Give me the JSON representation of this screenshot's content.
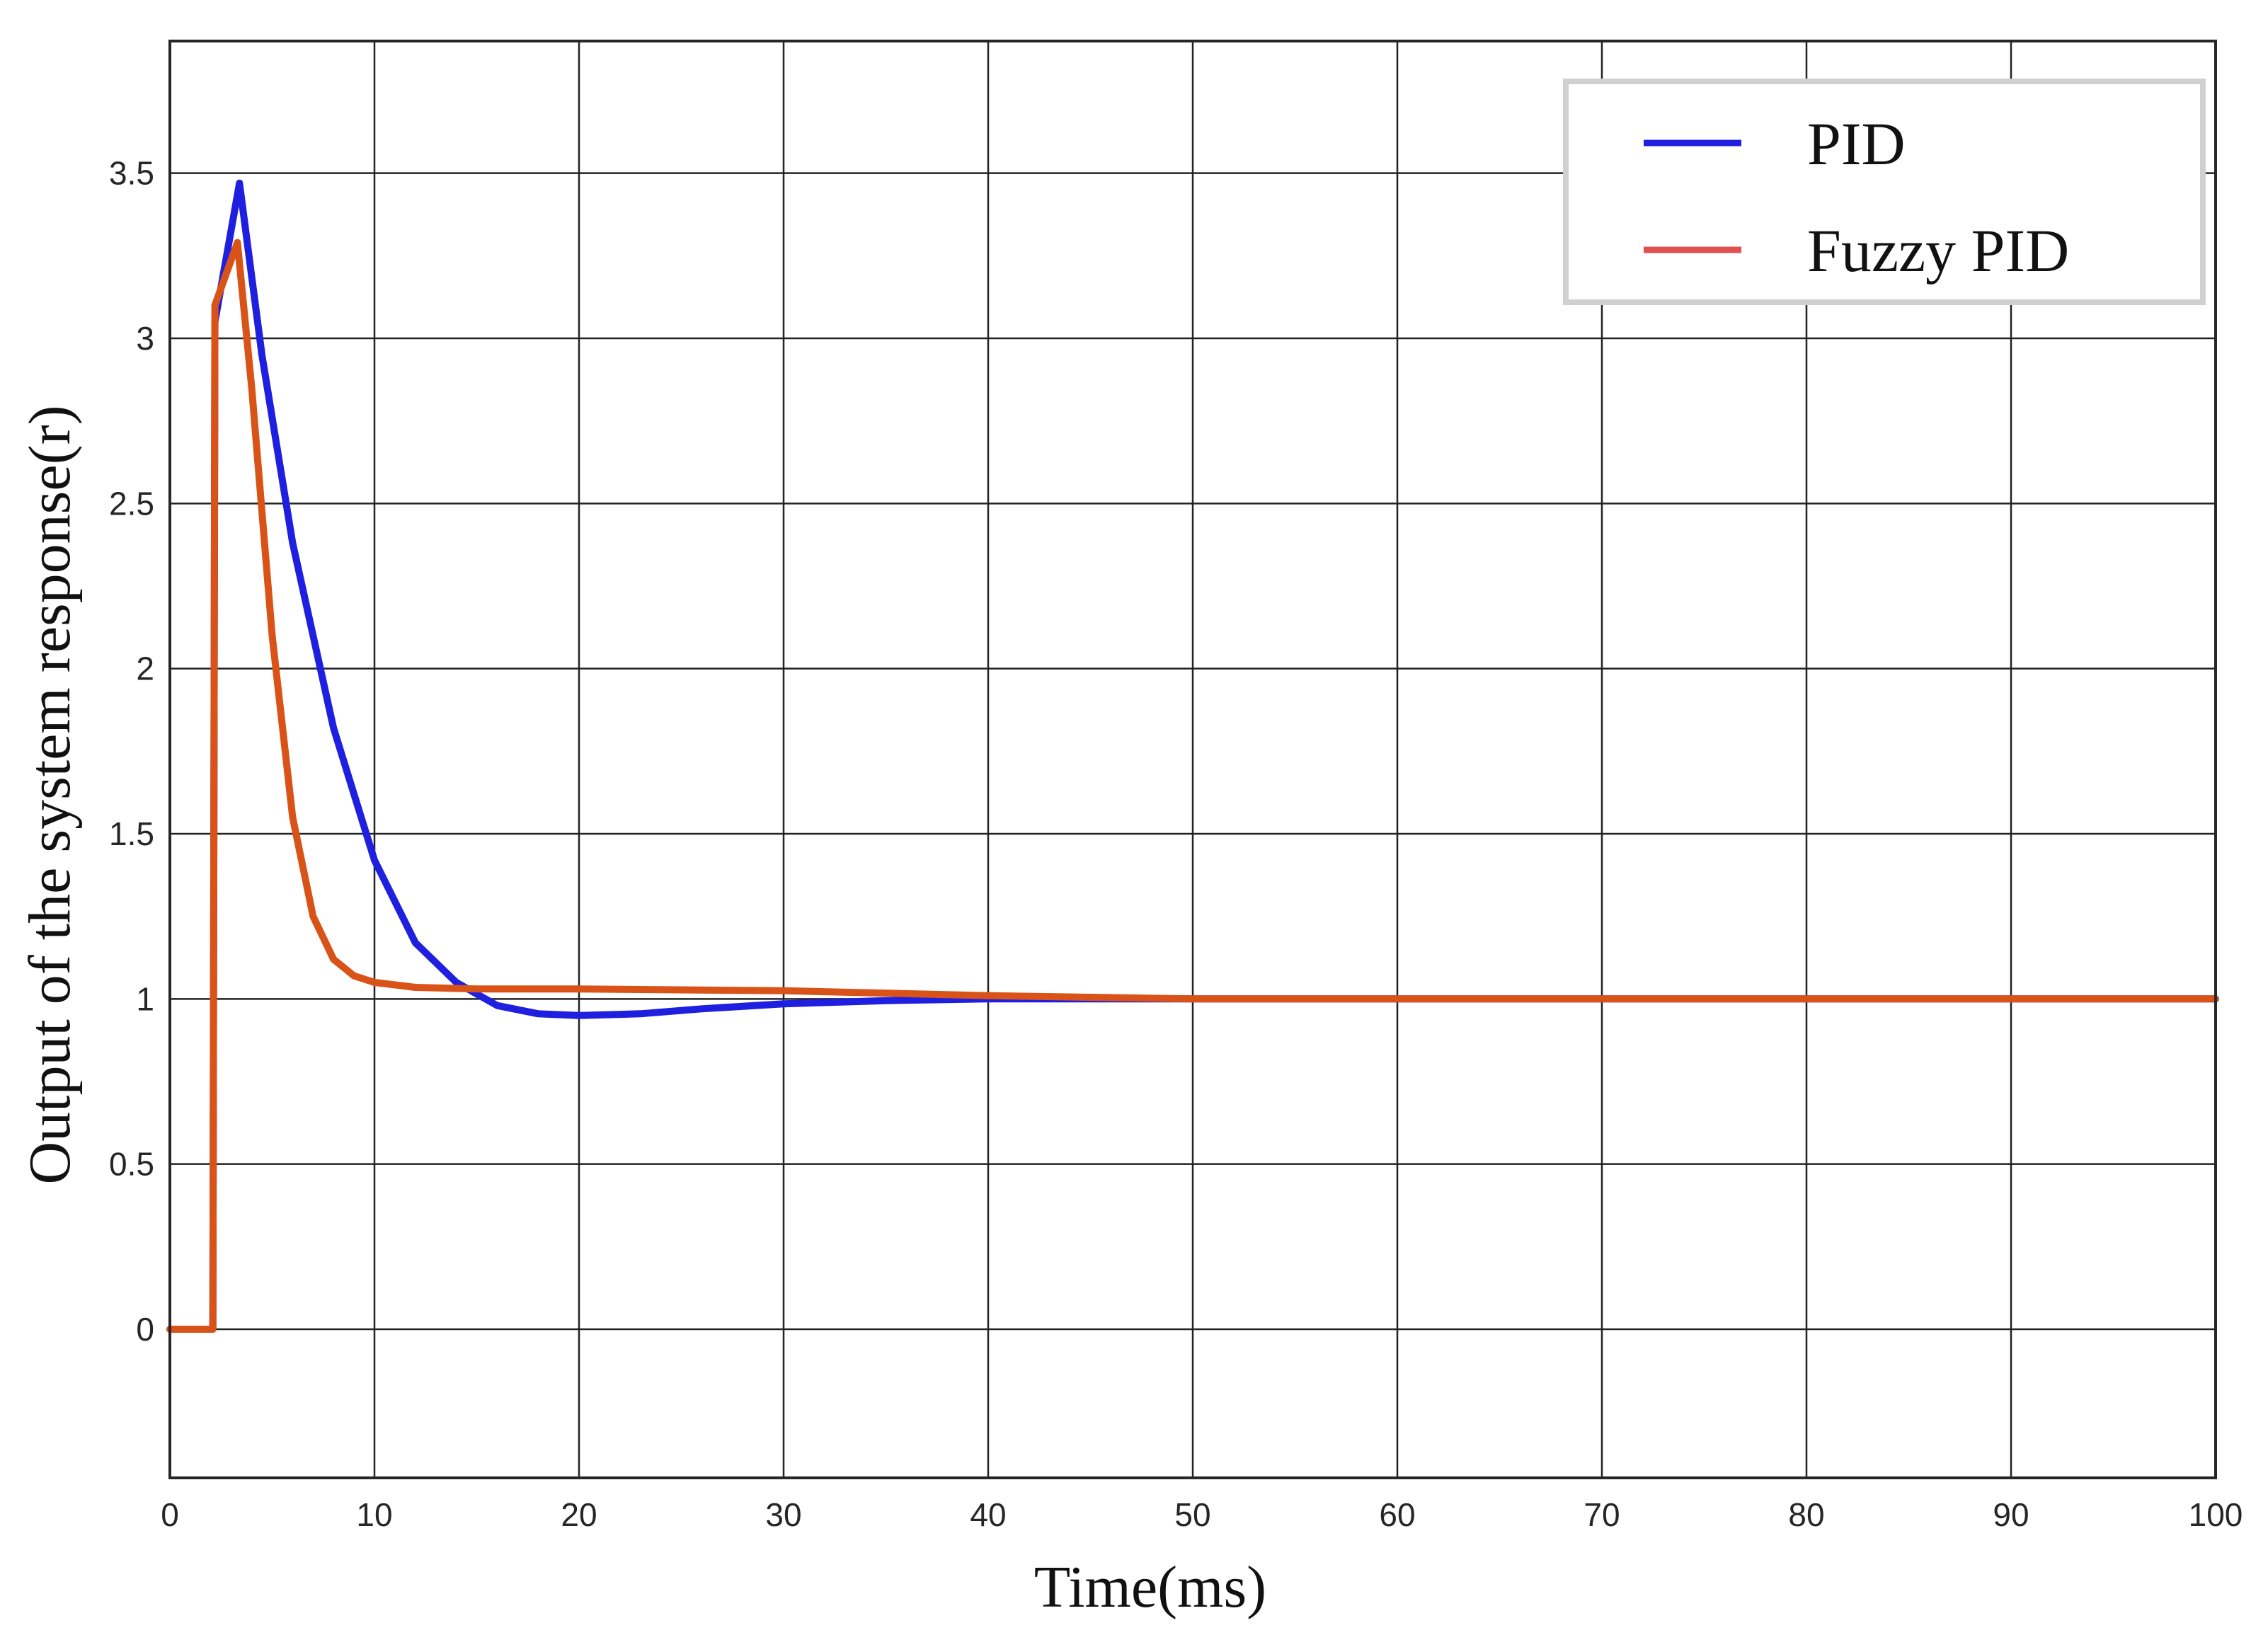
{
  "chart_data": {
    "type": "line",
    "title": "",
    "xlabel": "Time(ms)",
    "ylabel": "Output of the system response(r)",
    "xlim": [
      0,
      100
    ],
    "ylim": [
      -0.45,
      3.9
    ],
    "xticks": [
      0,
      10,
      20,
      30,
      40,
      50,
      60,
      70,
      80,
      90,
      100
    ],
    "yticks": [
      0,
      0.5,
      1,
      1.5,
      2,
      2.5,
      3,
      3.5
    ],
    "xtick_labels": [
      "0",
      "10",
      "20",
      "30",
      "40",
      "50",
      "60",
      "70",
      "80",
      "90",
      "100"
    ],
    "ytick_labels": [
      "0",
      "0.5",
      "1",
      "1.5",
      "2",
      "2.5",
      "3",
      "3.5"
    ],
    "grid": true,
    "legend_position": "top-right",
    "series": [
      {
        "name": "PID",
        "color": "#1f1fe0",
        "legend_color": "#1f1fe0",
        "points": [
          [
            0,
            0
          ],
          [
            2.1,
            0
          ],
          [
            2.2,
            3.05
          ],
          [
            3.4,
            3.47
          ],
          [
            4.5,
            2.95
          ],
          [
            6,
            2.38
          ],
          [
            8,
            1.82
          ],
          [
            10,
            1.42
          ],
          [
            12,
            1.17
          ],
          [
            14,
            1.05
          ],
          [
            16,
            0.98
          ],
          [
            18,
            0.955
          ],
          [
            20,
            0.95
          ],
          [
            23,
            0.955
          ],
          [
            26,
            0.97
          ],
          [
            30,
            0.985
          ],
          [
            35,
            0.995
          ],
          [
            40,
            1.0
          ],
          [
            50,
            1.0
          ],
          [
            100,
            1.0
          ]
        ]
      },
      {
        "name": "Fuzzy PID",
        "color": "#d95319",
        "legend_color": "#e05050",
        "points": [
          [
            0,
            0
          ],
          [
            2.1,
            0
          ],
          [
            2.2,
            3.1
          ],
          [
            3.3,
            3.29
          ],
          [
            4,
            2.85
          ],
          [
            5,
            2.1
          ],
          [
            6,
            1.55
          ],
          [
            7,
            1.25
          ],
          [
            8,
            1.12
          ],
          [
            9,
            1.07
          ],
          [
            10,
            1.05
          ],
          [
            12,
            1.035
          ],
          [
            15,
            1.03
          ],
          [
            20,
            1.03
          ],
          [
            30,
            1.025
          ],
          [
            40,
            1.01
          ],
          [
            50,
            1.0
          ],
          [
            100,
            1.0
          ]
        ]
      }
    ]
  }
}
